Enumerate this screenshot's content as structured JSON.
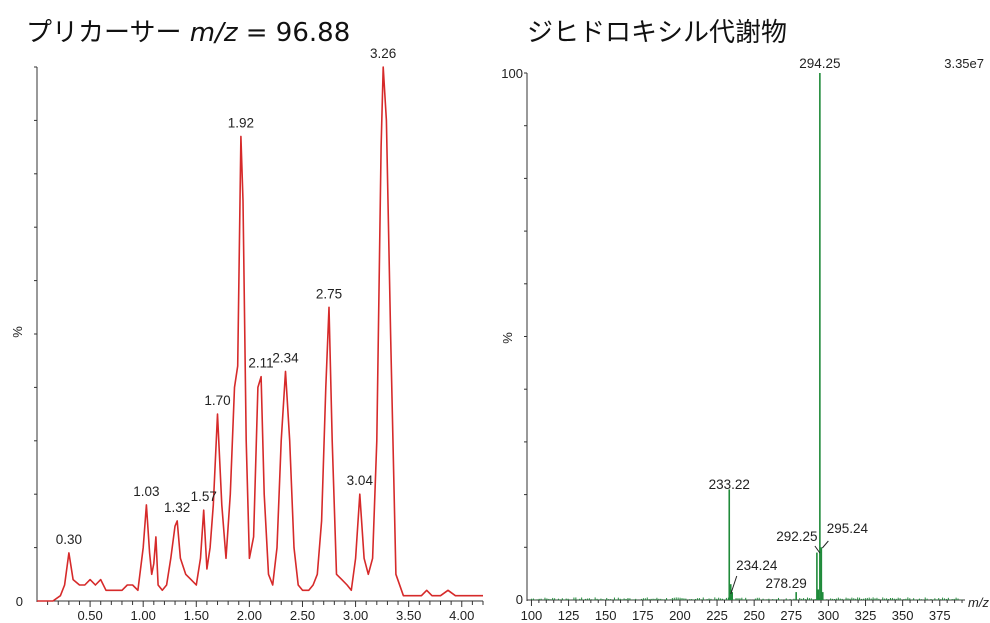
{
  "titles": {
    "left_prefix": "プリカーサー ",
    "left_mz": "m/z",
    "left_suffix": " = 96.88",
    "right": "ジヒドロキシル代謝物"
  },
  "chart_data": [
    {
      "type": "line",
      "title": "プリカーサー m/z = 96.88",
      "ylabel": "%",
      "xlabel": "",
      "color": "#d62a2a",
      "xlim": [
        0,
        4.2
      ],
      "ylim": [
        0,
        100
      ],
      "xticks": [
        0.5,
        1.0,
        1.5,
        2.0,
        2.5,
        3.0,
        3.5,
        4.0
      ],
      "xtick_labels": [
        "0.50",
        "1.00",
        "1.50",
        "2.00",
        "2.50",
        "3.00",
        "3.50",
        "4.00"
      ],
      "ytick_labels": [
        "0",
        "%"
      ],
      "points": [
        [
          0.0,
          0
        ],
        [
          0.15,
          0
        ],
        [
          0.22,
          1
        ],
        [
          0.26,
          3
        ],
        [
          0.3,
          9
        ],
        [
          0.34,
          4
        ],
        [
          0.4,
          3
        ],
        [
          0.45,
          3
        ],
        [
          0.5,
          4
        ],
        [
          0.55,
          3
        ],
        [
          0.6,
          4
        ],
        [
          0.65,
          2
        ],
        [
          0.75,
          2
        ],
        [
          0.8,
          2
        ],
        [
          0.85,
          3
        ],
        [
          0.9,
          3
        ],
        [
          0.95,
          2
        ],
        [
          1.0,
          10
        ],
        [
          1.03,
          18
        ],
        [
          1.06,
          9
        ],
        [
          1.08,
          5
        ],
        [
          1.1,
          7
        ],
        [
          1.12,
          12
        ],
        [
          1.14,
          3
        ],
        [
          1.18,
          2
        ],
        [
          1.22,
          3
        ],
        [
          1.26,
          8
        ],
        [
          1.3,
          14
        ],
        [
          1.32,
          15
        ],
        [
          1.35,
          8
        ],
        [
          1.4,
          5
        ],
        [
          1.45,
          4
        ],
        [
          1.5,
          3
        ],
        [
          1.54,
          8
        ],
        [
          1.57,
          17
        ],
        [
          1.6,
          6
        ],
        [
          1.63,
          10
        ],
        [
          1.66,
          18
        ],
        [
          1.7,
          35
        ],
        [
          1.74,
          18
        ],
        [
          1.78,
          8
        ],
        [
          1.82,
          20
        ],
        [
          1.86,
          40
        ],
        [
          1.89,
          44
        ],
        [
          1.92,
          87
        ],
        [
          1.94,
          75
        ],
        [
          1.97,
          30
        ],
        [
          2.0,
          8
        ],
        [
          2.04,
          12
        ],
        [
          2.08,
          40
        ],
        [
          2.11,
          42
        ],
        [
          2.14,
          20
        ],
        [
          2.18,
          5
        ],
        [
          2.22,
          3
        ],
        [
          2.26,
          10
        ],
        [
          2.3,
          30
        ],
        [
          2.34,
          43
        ],
        [
          2.38,
          30
        ],
        [
          2.42,
          10
        ],
        [
          2.46,
          3
        ],
        [
          2.5,
          2
        ],
        [
          2.56,
          2
        ],
        [
          2.6,
          3
        ],
        [
          2.64,
          5
        ],
        [
          2.68,
          15
        ],
        [
          2.72,
          40
        ],
        [
          2.75,
          55
        ],
        [
          2.78,
          30
        ],
        [
          2.82,
          5
        ],
        [
          2.87,
          4
        ],
        [
          2.92,
          3
        ],
        [
          2.96,
          2
        ],
        [
          3.0,
          8
        ],
        [
          3.04,
          20
        ],
        [
          3.08,
          8
        ],
        [
          3.12,
          5
        ],
        [
          3.16,
          8
        ],
        [
          3.2,
          30
        ],
        [
          3.24,
          85
        ],
        [
          3.26,
          100
        ],
        [
          3.29,
          90
        ],
        [
          3.33,
          50
        ],
        [
          3.38,
          5
        ],
        [
          3.45,
          1
        ],
        [
          3.55,
          1
        ],
        [
          3.62,
          1
        ],
        [
          3.67,
          2
        ],
        [
          3.72,
          1
        ],
        [
          3.8,
          1
        ],
        [
          3.87,
          2
        ],
        [
          3.94,
          1
        ],
        [
          4.05,
          1
        ],
        [
          4.15,
          1
        ],
        [
          4.2,
          1
        ]
      ],
      "labels": [
        {
          "x": 0.3,
          "y": 9,
          "text": "0.30"
        },
        {
          "x": 1.03,
          "y": 18,
          "text": "1.03"
        },
        {
          "x": 1.32,
          "y": 15,
          "text": "1.32"
        },
        {
          "x": 1.57,
          "y": 17,
          "text": "1.57"
        },
        {
          "x": 1.7,
          "y": 35,
          "text": "1.70"
        },
        {
          "x": 1.92,
          "y": 87,
          "text": "1.92"
        },
        {
          "x": 2.11,
          "y": 42,
          "text": "2.11"
        },
        {
          "x": 2.34,
          "y": 43,
          "text": "2.34"
        },
        {
          "x": 2.75,
          "y": 55,
          "text": "2.75"
        },
        {
          "x": 3.04,
          "y": 20,
          "text": "3.04"
        },
        {
          "x": 3.26,
          "y": 100,
          "text": "3.26"
        }
      ]
    },
    {
      "type": "bar",
      "title": "ジヒドロキシル代謝物",
      "ylabel": "%",
      "xlabel": "m/z",
      "color": "#1f8a3a",
      "xlim": [
        97,
        392
      ],
      "ylim": [
        0,
        100
      ],
      "xticks": [
        100,
        125,
        150,
        175,
        200,
        225,
        250,
        275,
        300,
        325,
        350,
        375
      ],
      "xtick_labels": [
        "100",
        "125",
        "150",
        "175",
        "200",
        "225",
        "250",
        "275",
        "300",
        "325",
        "350",
        "375"
      ],
      "ytick_labels": [
        "0",
        "%",
        "100"
      ],
      "intensity_label": "3.35e7",
      "peaks": [
        {
          "x": 233.22,
          "y": 21
        },
        {
          "x": 234.24,
          "y": 3
        },
        {
          "x": 235.2,
          "y": 1.5
        },
        {
          "x": 278.29,
          "y": 1.5
        },
        {
          "x": 292.25,
          "y": 9
        },
        {
          "x": 293.2,
          "y": 2
        },
        {
          "x": 294.25,
          "y": 100
        },
        {
          "x": 295.24,
          "y": 10
        },
        {
          "x": 296.2,
          "y": 1.5
        }
      ],
      "labels": [
        {
          "x": 233.22,
          "text": "233.22"
        },
        {
          "x": 234.24,
          "text": "234.24"
        },
        {
          "x": 278.29,
          "text": "278.29"
        },
        {
          "x": 292.25,
          "text": "292.25"
        },
        {
          "x": 294.25,
          "text": "294.25"
        },
        {
          "x": 295.24,
          "text": "295.24"
        }
      ]
    }
  ]
}
